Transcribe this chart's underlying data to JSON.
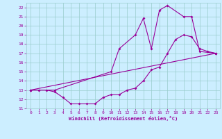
{
  "xlabel": "Windchill (Refroidissement éolien,°C)",
  "background_color": "#cceeff",
  "grid_color": "#99cccc",
  "line_color": "#990099",
  "xlim": [
    -0.5,
    23.5
  ],
  "ylim": [
    11,
    22.5
  ],
  "xticks": [
    0,
    1,
    2,
    3,
    4,
    5,
    6,
    7,
    8,
    9,
    10,
    11,
    12,
    13,
    14,
    15,
    16,
    17,
    18,
    19,
    20,
    21,
    22,
    23
  ],
  "yticks": [
    11,
    12,
    13,
    14,
    15,
    16,
    17,
    18,
    19,
    20,
    21,
    22
  ],
  "line1_x": [
    0,
    1,
    2,
    3,
    4,
    5,
    6,
    7,
    8,
    9,
    10,
    11,
    12,
    13,
    14,
    15,
    16,
    17,
    18,
    19,
    20,
    21,
    22,
    23
  ],
  "line1_y": [
    13,
    13,
    13,
    12.8,
    12.2,
    11.5,
    11.5,
    11.5,
    11.5,
    12.2,
    12.5,
    12.5,
    13.0,
    13.2,
    14.0,
    15.2,
    15.5,
    17.0,
    18.5,
    19.0,
    18.8,
    17.5,
    17.2,
    17.0
  ],
  "line2_x": [
    0,
    3,
    10,
    11,
    13,
    14,
    15,
    16,
    17,
    19,
    20,
    21,
    23
  ],
  "line2_y": [
    13,
    13,
    15,
    17.5,
    19.0,
    20.8,
    17.5,
    21.7,
    22.2,
    21.0,
    21.0,
    17.2,
    17.0
  ],
  "line3_x": [
    0,
    23
  ],
  "line3_y": [
    13.0,
    17.0
  ]
}
